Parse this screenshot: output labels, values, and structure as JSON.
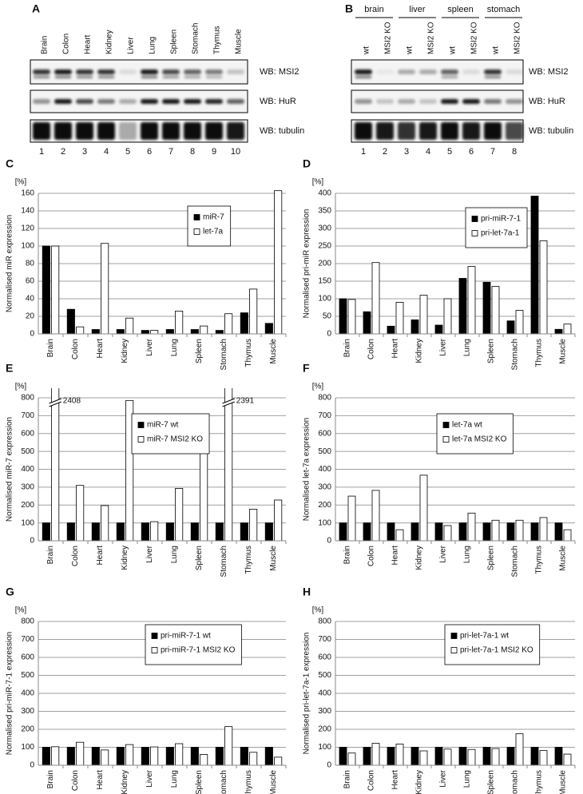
{
  "blots": [
    {
      "panel": "A",
      "lanes": [
        "Brain",
        "Colon",
        "Heart",
        "Kidney",
        "Liver",
        "Lung",
        "Spleen",
        "Stomach",
        "Thymus",
        "Muscle"
      ],
      "lane_numbers": [
        1,
        2,
        3,
        4,
        5,
        6,
        7,
        8,
        9,
        10
      ],
      "labels": [
        "WB: MSI2",
        "WB: HuR",
        "WB: tubulin"
      ]
    },
    {
      "panel": "B",
      "groups": [
        "brain",
        "liver",
        "spleen",
        "stomach"
      ],
      "lanes": [
        "wt",
        "MSI2 KO",
        "wt",
        "MSI2 KO",
        "wt",
        "MSI2 KO",
        "wt",
        "MSI2 KO"
      ],
      "lane_numbers": [
        1,
        2,
        3,
        4,
        5,
        6,
        7,
        8
      ],
      "labels": [
        "WB: MSI2",
        "WB: HuR",
        "WB: tubulin"
      ]
    }
  ],
  "chart_data": [
    {
      "type": "bar",
      "panel": "C",
      "unit": "[%]",
      "ylabel": "Normalised miR expression",
      "categories": [
        "Brain",
        "Colon",
        "Heart",
        "Kidney",
        "Liver",
        "Lung",
        "Spleen",
        "Stomach",
        "Thymus",
        "Muscle"
      ],
      "series": [
        {
          "name": "miR-7",
          "color": "#000000",
          "values": [
            100,
            28,
            5,
            5,
            4,
            5,
            5,
            4,
            24,
            12
          ]
        },
        {
          "name": "let-7a",
          "color": "#ffffff",
          "values": [
            100,
            8,
            103,
            18,
            4,
            26,
            9,
            23,
            51,
            163
          ]
        }
      ],
      "ylim": [
        0,
        160
      ],
      "yticks": [
        0,
        20,
        40,
        60,
        80,
        100,
        120,
        140,
        160
      ],
      "grid": true
    },
    {
      "type": "bar",
      "panel": "D",
      "unit": "[%]",
      "ylabel": "Normalised pri-miR expression",
      "categories": [
        "Brain",
        "Colon",
        "Heart",
        "Kidney",
        "Liver",
        "Lung",
        "Spleen",
        "Stomach",
        "Thymus",
        "Muscle"
      ],
      "series": [
        {
          "name": "pri-miR-7-1",
          "color": "#000000",
          "values": [
            100,
            63,
            22,
            40,
            25,
            158,
            147,
            37,
            392,
            13
          ]
        },
        {
          "name": "pri-let-7a-1",
          "color": "#ffffff",
          "values": [
            98,
            203,
            90,
            110,
            100,
            192,
            135,
            67,
            265,
            28
          ]
        }
      ],
      "ylim": [
        0,
        400
      ],
      "yticks": [
        0,
        50,
        100,
        150,
        200,
        250,
        300,
        350,
        400
      ],
      "grid": true
    },
    {
      "type": "bar",
      "panel": "E",
      "unit": "[%]",
      "ylabel": "Normalised miR-7 expression",
      "categories": [
        "Brain",
        "Colon",
        "Heart",
        "Kidney",
        "Liver",
        "Lung",
        "Spleen",
        "Stomach",
        "Thymus",
        "Muscle"
      ],
      "series": [
        {
          "name": "miR-7 wt",
          "color": "#000000",
          "values": [
            100,
            100,
            100,
            100,
            100,
            100,
            100,
            100,
            100,
            100
          ]
        },
        {
          "name": "miR-7 MSI2 KO",
          "color": "#ffffff",
          "values": [
            2408,
            310,
            197,
            785,
            107,
            293,
            520,
            2391,
            177,
            228
          ],
          "value_labels": [
            "2408",
            null,
            null,
            null,
            null,
            null,
            null,
            "2391",
            null,
            null
          ]
        }
      ],
      "ylim": [
        0,
        800
      ],
      "yticks": [
        0,
        100,
        200,
        300,
        400,
        500,
        600,
        700,
        800
      ],
      "grid": true
    },
    {
      "type": "bar",
      "panel": "F",
      "unit": "[%]",
      "ylabel": "Normalised let-7a expression",
      "categories": [
        "Brain",
        "Colon",
        "Heart",
        "Kidney",
        "Liver",
        "Lung",
        "Spleen",
        "Stomach",
        "Thymus",
        "Muscle"
      ],
      "series": [
        {
          "name": "let-7a wt",
          "color": "#000000",
          "values": [
            100,
            100,
            100,
            100,
            100,
            100,
            100,
            100,
            100,
            100
          ]
        },
        {
          "name": "let-7a MSI2 KO",
          "color": "#ffffff",
          "values": [
            250,
            282,
            62,
            367,
            85,
            155,
            115,
            115,
            130,
            62
          ]
        }
      ],
      "ylim": [
        0,
        800
      ],
      "yticks": [
        0,
        100,
        200,
        300,
        400,
        500,
        600,
        700,
        800
      ],
      "grid": true
    },
    {
      "type": "bar",
      "panel": "G",
      "unit": "[%]",
      "ylabel": "Normalised pri-miR-7-1 expression",
      "categories": [
        "Brain",
        "Colon",
        "Heart",
        "Kidney",
        "Liver",
        "Lung",
        "Spleen",
        "Stomach",
        "Thymus",
        "Muscle"
      ],
      "series": [
        {
          "name": "pri-miR-7-1 wt",
          "color": "#000000",
          "values": [
            100,
            100,
            100,
            100,
            100,
            100,
            100,
            100,
            100,
            100
          ]
        },
        {
          "name": "pri-miR-7-1 MSI2 KO",
          "color": "#ffffff",
          "values": [
            103,
            128,
            85,
            115,
            102,
            120,
            60,
            215,
            72,
            45
          ]
        }
      ],
      "ylim": [
        0,
        800
      ],
      "yticks": [
        0,
        100,
        200,
        300,
        400,
        500,
        600,
        700,
        800
      ],
      "grid": true
    },
    {
      "type": "bar",
      "panel": "H",
      "unit": "[%]",
      "ylabel": "Normalised pri-let-7a-1 expression",
      "categories": [
        "Brain",
        "Colon",
        "Heart",
        "Kidney",
        "Liver",
        "Lung",
        "Spleen",
        "Stomach",
        "Thymus",
        "Muscle"
      ],
      "series": [
        {
          "name": "pri-let-7a-1 wt",
          "color": "#000000",
          "values": [
            100,
            100,
            100,
            100,
            100,
            100,
            100,
            100,
            100,
            100
          ]
        },
        {
          "name": "pri-let-7a-1 MSI2 KO",
          "color": "#ffffff",
          "values": [
            68,
            122,
            118,
            80,
            90,
            88,
            93,
            175,
            82,
            62
          ]
        }
      ],
      "ylim": [
        0,
        800
      ],
      "yticks": [
        0,
        100,
        200,
        300,
        400,
        500,
        600,
        700,
        800
      ],
      "grid": true
    }
  ]
}
